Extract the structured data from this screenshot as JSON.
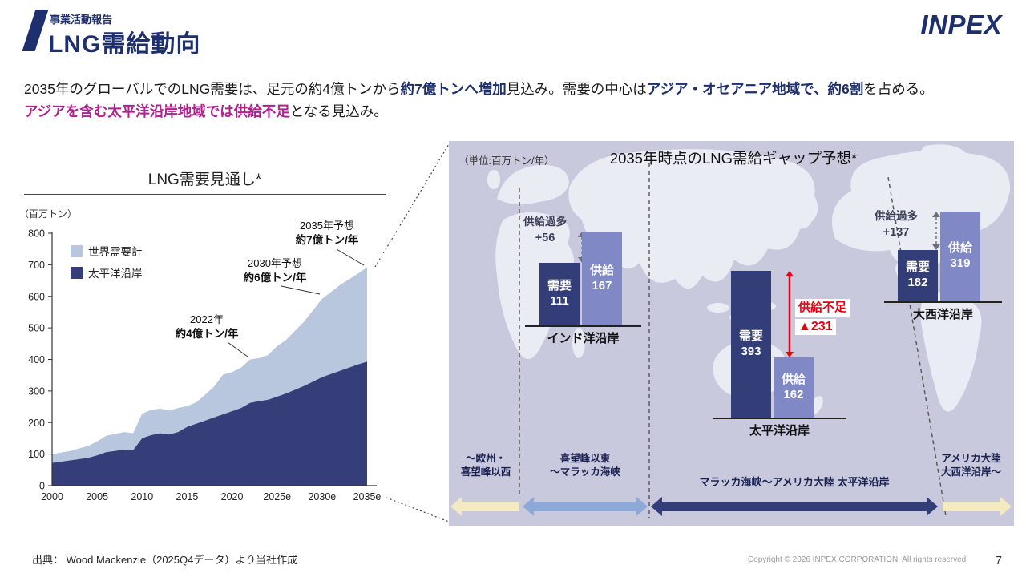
{
  "header": {
    "eyebrow": "事業活動報告",
    "title": "LNG需給動向",
    "brand": "INPEX"
  },
  "lead": {
    "l1s1": "2035年のグローバルでのLNG需要は、足元の約4億トンから",
    "l1s2": "約7億トンへ増加",
    "l1s3": "見込み。需要の中心は",
    "l1s4": "アジア・オセアニア地域で、約6割",
    "l1s5": "を占める。",
    "l2s1": "アジアを含む太平洋沿岸地域では供給不足",
    "l2s2": "となる見込み。"
  },
  "chart_data": [
    {
      "type": "area",
      "title": "LNG需要見通し*",
      "unit_label": "（百万トン）",
      "ylim": [
        0,
        800
      ],
      "yticks": [
        0,
        100,
        200,
        300,
        400,
        500,
        600,
        700,
        800
      ],
      "xticks": [
        "2000",
        "2005",
        "2010",
        "2015",
        "2020",
        "2025e",
        "2030e",
        "2035e"
      ],
      "legend_position": "top-left",
      "grid": false,
      "x": [
        2000,
        2002,
        2004,
        2005,
        2006,
        2008,
        2009,
        2010,
        2011,
        2012,
        2013,
        2014,
        2015,
        2016,
        2017,
        2018,
        2019,
        2020,
        2021,
        2022,
        2023,
        2024,
        2025,
        2026,
        2028,
        2030,
        2032,
        2034,
        2035
      ],
      "series": [
        {
          "name": "世界需要計",
          "color": "#b9c7de",
          "values": [
            100,
            110,
            126,
            140,
            158,
            170,
            166,
            228,
            240,
            244,
            238,
            246,
            252,
            264,
            288,
            314,
            352,
            360,
            374,
            400,
            404,
            414,
            442,
            462,
            520,
            592,
            636,
            672,
            692
          ]
        },
        {
          "name": "太平洋沿岸",
          "color": "#353e79",
          "values": [
            72,
            80,
            88,
            96,
            106,
            114,
            112,
            150,
            160,
            166,
            162,
            170,
            186,
            196,
            206,
            216,
            226,
            236,
            246,
            262,
            268,
            272,
            282,
            292,
            316,
            344,
            364,
            384,
            393
          ]
        }
      ],
      "annotations": [
        {
          "label": "2022年",
          "sublabel": "約4億トン/年"
        },
        {
          "label": "2030年予想",
          "sublabel": "約6億トン/年"
        },
        {
          "label": "2035年予想",
          "sublabel": "約7億トン/年"
        }
      ]
    },
    {
      "type": "bar",
      "title": "2035年時点のLNG需給ギャップ予想*",
      "unit_label": "（単位:百万トン/年）",
      "bar_labels": {
        "demand": "需要",
        "supply": "供給"
      },
      "colors": {
        "demand": "#333d78",
        "supply": "#8089c6",
        "deficit": "#e60012",
        "surplus_arrow": "#6b6f80"
      },
      "groups": [
        {
          "region": "インド洋沿岸",
          "demand": 111,
          "supply": 167,
          "gap_label": "供給過多",
          "gap_value": "+56",
          "gap_type": "surplus"
        },
        {
          "region": "太平洋沿岸",
          "demand": 393,
          "supply": 162,
          "gap_label": "供給不足",
          "gap_value": "▲231",
          "gap_type": "deficit"
        },
        {
          "region": "大西洋沿岸",
          "demand": 182,
          "supply": 319,
          "gap_label": "供給過多",
          "gap_value": "+137",
          "gap_type": "surplus"
        }
      ],
      "corridors": [
        {
          "label": "～欧州・\n喜望峰以西",
          "color": "#f3eac1",
          "direction": "left"
        },
        {
          "label": "喜望峰以東\n～マラッカ海峡",
          "color": "#8ea9d8",
          "direction": "both"
        },
        {
          "label": "マラッカ海峡～アメリカ大陸 太平洋沿岸",
          "color": "#333d78",
          "direction": "both"
        },
        {
          "label": "アメリカ大陸\n大西洋沿岸～",
          "color": "#f3eac1",
          "direction": "right"
        }
      ]
    }
  ],
  "footer": {
    "source": "出典： Wood Mackenzie（2025Q4データ）より当社作成",
    "copyright": "Copyright © 2026 INPEX CORPORATION. All rights reserved.",
    "page": "7"
  }
}
